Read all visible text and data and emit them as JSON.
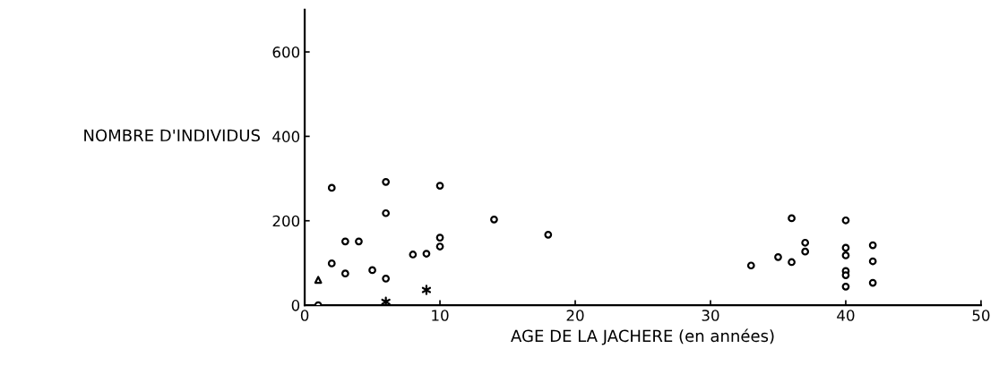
{
  "chart_data": {
    "type": "scatter",
    "xlabel": "AGE DE LA JACHERE (en années)",
    "ylabel": "NOMBRE D'INDIVIDUS",
    "xlim": [
      0,
      50
    ],
    "xticks": [
      0,
      10,
      20,
      30,
      40,
      50
    ],
    "ylim": [
      0,
      700
    ],
    "yticks": [
      0,
      200,
      400,
      600
    ],
    "grid": false,
    "legend": false,
    "series": [
      {
        "color": "#000000",
        "marker": "circle",
        "x": [
          1,
          2,
          2,
          3,
          3,
          4,
          5,
          6,
          6,
          6,
          8,
          9,
          10,
          10,
          10,
          14,
          18,
          33,
          35,
          36,
          36,
          37,
          37,
          40,
          40,
          40,
          40,
          40,
          40,
          42,
          42,
          42
        ],
        "values": [
          0,
          278,
          99,
          151,
          75,
          151,
          83,
          292,
          218,
          63,
          120,
          122,
          283,
          160,
          139,
          203,
          167,
          94,
          114,
          206,
          102,
          148,
          127,
          201,
          136,
          118,
          81,
          71,
          44,
          142,
          104,
          53
        ]
      },
      {
        "color": "#000000",
        "marker": "triangle",
        "x": [
          1
        ],
        "values": [
          60
        ]
      },
      {
        "color": "#000000",
        "marker": "cross",
        "x": [
          6,
          9
        ],
        "values": [
          8,
          36
        ]
      }
    ]
  }
}
